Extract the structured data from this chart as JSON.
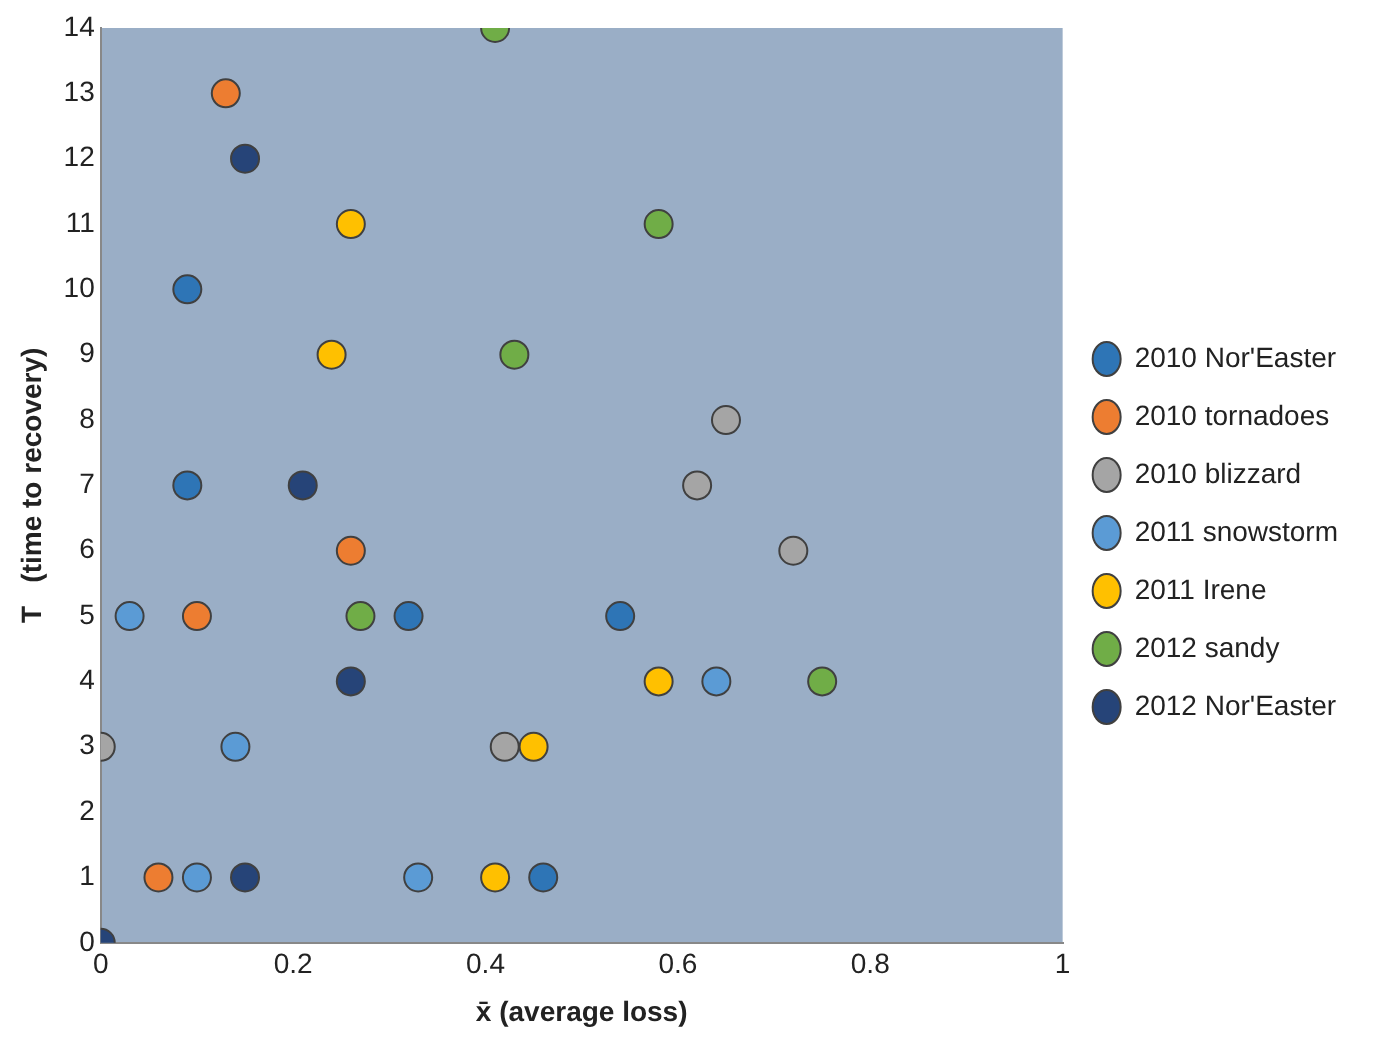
{
  "chart_data": {
    "type": "scatter",
    "xlabel": "x̄ (average loss)",
    "ylabel": "T   (time to recovery)",
    "xlim": [
      0,
      1
    ],
    "xticks": [
      0,
      0.2,
      0.4,
      0.6,
      0.8,
      1
    ],
    "ylim": [
      0,
      14
    ],
    "yticks": [
      0,
      1,
      2,
      3,
      4,
      5,
      6,
      7,
      8,
      9,
      10,
      11,
      12,
      13,
      14
    ],
    "grid": false,
    "legend": "right",
    "marker": "circle",
    "series": [
      {
        "name": "2010 Nor'Easter",
        "color": "#2e75b6",
        "x": [
          0.09,
          0.09,
          0.32,
          0.54,
          0.46
        ],
        "values": [
          10,
          7,
          5,
          5,
          1
        ]
      },
      {
        "name": "2010 tornadoes",
        "color": "#ed7d31",
        "x": [
          0.13,
          0.26,
          0.1,
          0.06
        ],
        "values": [
          13,
          6,
          5,
          1
        ]
      },
      {
        "name": "2010 blizzard",
        "color": "#a5a5a5",
        "x": [
          0.65,
          0.62,
          0.72,
          0.42,
          0
        ],
        "values": [
          8,
          7,
          6,
          3,
          3
        ]
      },
      {
        "name": "2011 snowstorm",
        "color": "#5b9bd5",
        "x": [
          0.03,
          0.14,
          0.1,
          0.33,
          0.64
        ],
        "values": [
          5,
          3,
          1,
          1,
          4
        ]
      },
      {
        "name": "2011 Irene",
        "color": "#ffc000",
        "x": [
          0.26,
          0.24,
          0.58,
          0.45,
          0.41
        ],
        "values": [
          11,
          9,
          4,
          3,
          1
        ]
      },
      {
        "name": "2012 sandy",
        "color": "#70ad47",
        "x": [
          0.41,
          0.58,
          0.43,
          0.27,
          0.75
        ],
        "values": [
          14,
          11,
          9,
          5,
          4
        ]
      },
      {
        "name": "2012 Nor'Easter",
        "color": "#264478",
        "x": [
          0.15,
          0.21,
          0.26,
          0.15,
          0
        ],
        "values": [
          12,
          7,
          4,
          1,
          0
        ]
      }
    ]
  }
}
